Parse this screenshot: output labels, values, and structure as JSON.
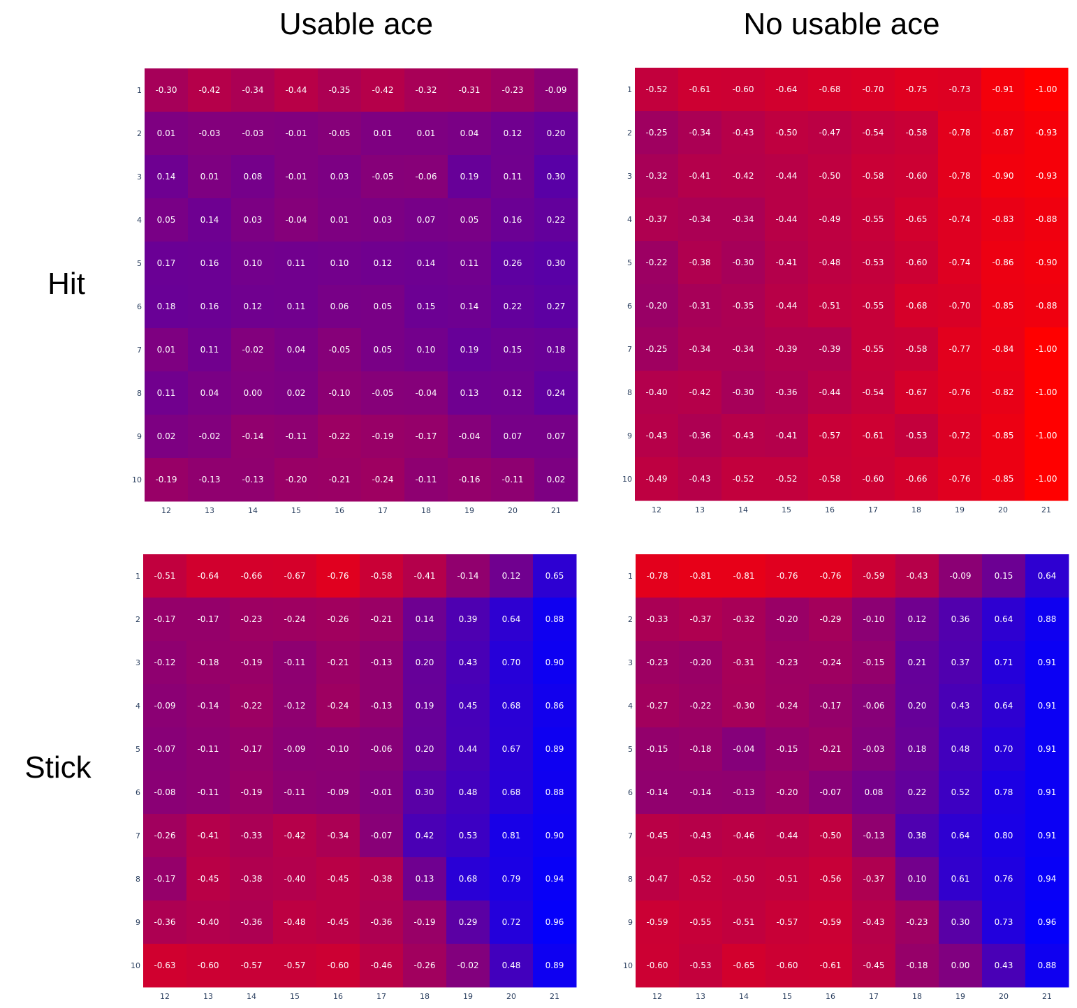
{
  "headers": {
    "columns": [
      "Usable ace",
      "No usable ace"
    ],
    "rows": [
      "Hit",
      "Stick"
    ]
  },
  "colors": {
    "low": "#ff0000",
    "high": "#0000ff",
    "cell_text": "#ffffff",
    "tick_text": "#2a3f5f"
  },
  "chart_data": [
    {
      "type": "heatmap",
      "x": [
        12,
        13,
        14,
        15,
        16,
        17,
        18,
        19,
        20,
        21
      ],
      "y": [
        1,
        2,
        3,
        4,
        5,
        6,
        7,
        8,
        9,
        10
      ],
      "zrange": [
        -1,
        1
      ],
      "colorscale": [
        "#ff0000",
        "#0000ff"
      ],
      "z": [
        [
          -0.3,
          -0.42,
          -0.34,
          -0.44,
          -0.35,
          -0.42,
          -0.32,
          -0.31,
          -0.23,
          -0.09
        ],
        [
          0.01,
          -0.03,
          -0.03,
          -0.01,
          -0.05,
          0.01,
          0.01,
          0.04,
          0.12,
          0.2
        ],
        [
          0.14,
          0.01,
          0.08,
          -0.01,
          0.03,
          -0.05,
          -0.06,
          0.19,
          0.11,
          0.3
        ],
        [
          0.05,
          0.14,
          0.03,
          -0.04,
          0.01,
          0.03,
          0.07,
          0.05,
          0.16,
          0.22
        ],
        [
          0.17,
          0.16,
          0.1,
          0.11,
          0.1,
          0.12,
          0.14,
          0.11,
          0.26,
          0.3
        ],
        [
          0.18,
          0.16,
          0.12,
          0.11,
          0.06,
          0.05,
          0.15,
          0.14,
          0.22,
          0.27
        ],
        [
          0.01,
          0.11,
          -0.02,
          0.04,
          -0.05,
          0.05,
          0.1,
          0.19,
          0.15,
          0.18
        ],
        [
          0.11,
          0.04,
          0.0,
          0.02,
          -0.1,
          -0.05,
          -0.04,
          0.13,
          0.12,
          0.24
        ],
        [
          0.02,
          -0.02,
          -0.14,
          -0.11,
          -0.22,
          -0.19,
          -0.17,
          -0.04,
          0.07,
          0.07
        ],
        [
          -0.19,
          -0.13,
          -0.13,
          -0.2,
          -0.21,
          -0.24,
          -0.11,
          -0.16,
          -0.11,
          0.02
        ]
      ]
    },
    {
      "type": "heatmap",
      "x": [
        12,
        13,
        14,
        15,
        16,
        17,
        18,
        19,
        20,
        21
      ],
      "y": [
        1,
        2,
        3,
        4,
        5,
        6,
        7,
        8,
        9,
        10
      ],
      "zrange": [
        -1,
        1
      ],
      "colorscale": [
        "#ff0000",
        "#0000ff"
      ],
      "z": [
        [
          -0.52,
          -0.61,
          -0.6,
          -0.64,
          -0.68,
          -0.7,
          -0.75,
          -0.73,
          -0.91,
          -1.0
        ],
        [
          -0.25,
          -0.34,
          -0.43,
          -0.5,
          -0.47,
          -0.54,
          -0.58,
          -0.78,
          -0.87,
          -0.93
        ],
        [
          -0.32,
          -0.41,
          -0.42,
          -0.44,
          -0.5,
          -0.58,
          -0.6,
          -0.78,
          -0.9,
          -0.93
        ],
        [
          -0.37,
          -0.34,
          -0.34,
          -0.44,
          -0.49,
          -0.55,
          -0.65,
          -0.74,
          -0.83,
          -0.88
        ],
        [
          -0.22,
          -0.38,
          -0.3,
          -0.41,
          -0.48,
          -0.53,
          -0.6,
          -0.74,
          -0.86,
          -0.9
        ],
        [
          -0.2,
          -0.31,
          -0.35,
          -0.44,
          -0.51,
          -0.55,
          -0.68,
          -0.7,
          -0.85,
          -0.88
        ],
        [
          -0.25,
          -0.34,
          -0.34,
          -0.39,
          -0.39,
          -0.55,
          -0.58,
          -0.77,
          -0.84,
          -1.0
        ],
        [
          -0.4,
          -0.42,
          -0.3,
          -0.36,
          -0.44,
          -0.54,
          -0.67,
          -0.76,
          -0.82,
          -1.0
        ],
        [
          -0.43,
          -0.36,
          -0.43,
          -0.41,
          -0.57,
          -0.61,
          -0.53,
          -0.72,
          -0.85,
          -1.0
        ],
        [
          -0.49,
          -0.43,
          -0.52,
          -0.52,
          -0.58,
          -0.6,
          -0.66,
          -0.76,
          -0.85,
          -1.0
        ]
      ]
    },
    {
      "type": "heatmap",
      "x": [
        12,
        13,
        14,
        15,
        16,
        17,
        18,
        19,
        20,
        21
      ],
      "y": [
        1,
        2,
        3,
        4,
        5,
        6,
        7,
        8,
        9,
        10
      ],
      "zrange": [
        -1,
        1
      ],
      "colorscale": [
        "#ff0000",
        "#0000ff"
      ],
      "z": [
        [
          -0.51,
          -0.64,
          -0.66,
          -0.67,
          -0.76,
          -0.58,
          -0.41,
          -0.14,
          0.12,
          0.65
        ],
        [
          -0.17,
          -0.17,
          -0.23,
          -0.24,
          -0.26,
          -0.21,
          0.14,
          0.39,
          0.64,
          0.88
        ],
        [
          -0.12,
          -0.18,
          -0.19,
          -0.11,
          -0.21,
          -0.13,
          0.2,
          0.43,
          0.7,
          0.9
        ],
        [
          -0.09,
          -0.14,
          -0.22,
          -0.12,
          -0.24,
          -0.13,
          0.19,
          0.45,
          0.68,
          0.86
        ],
        [
          -0.07,
          -0.11,
          -0.17,
          -0.09,
          -0.1,
          -0.06,
          0.2,
          0.44,
          0.67,
          0.89
        ],
        [
          -0.08,
          -0.11,
          -0.19,
          -0.11,
          -0.09,
          -0.01,
          0.3,
          0.48,
          0.68,
          0.88
        ],
        [
          -0.26,
          -0.41,
          -0.33,
          -0.42,
          -0.34,
          -0.07,
          0.42,
          0.53,
          0.81,
          0.9
        ],
        [
          -0.17,
          -0.45,
          -0.38,
          -0.4,
          -0.45,
          -0.38,
          0.13,
          0.68,
          0.79,
          0.94
        ],
        [
          -0.36,
          -0.4,
          -0.36,
          -0.48,
          -0.45,
          -0.36,
          -0.19,
          0.29,
          0.72,
          0.96
        ],
        [
          -0.63,
          -0.6,
          -0.57,
          -0.57,
          -0.6,
          -0.46,
          -0.26,
          -0.02,
          0.48,
          0.89
        ]
      ]
    },
    {
      "type": "heatmap",
      "x": [
        12,
        13,
        14,
        15,
        16,
        17,
        18,
        19,
        20,
        21
      ],
      "y": [
        1,
        2,
        3,
        4,
        5,
        6,
        7,
        8,
        9,
        10
      ],
      "zrange": [
        -1,
        1
      ],
      "colorscale": [
        "#ff0000",
        "#0000ff"
      ],
      "z": [
        [
          -0.78,
          -0.81,
          -0.81,
          -0.76,
          -0.76,
          -0.59,
          -0.43,
          -0.09,
          0.15,
          0.64
        ],
        [
          -0.33,
          -0.37,
          -0.32,
          -0.2,
          -0.29,
          -0.1,
          0.12,
          0.36,
          0.64,
          0.88
        ],
        [
          -0.23,
          -0.2,
          -0.31,
          -0.23,
          -0.24,
          -0.15,
          0.21,
          0.37,
          0.71,
          0.91
        ],
        [
          -0.27,
          -0.22,
          -0.3,
          -0.24,
          -0.17,
          -0.06,
          0.2,
          0.43,
          0.64,
          0.91
        ],
        [
          -0.15,
          -0.18,
          -0.04,
          -0.15,
          -0.21,
          -0.03,
          0.18,
          0.48,
          0.7,
          0.91
        ],
        [
          -0.14,
          -0.14,
          -0.13,
          -0.2,
          -0.07,
          0.08,
          0.22,
          0.52,
          0.78,
          0.91
        ],
        [
          -0.45,
          -0.43,
          -0.46,
          -0.44,
          -0.5,
          -0.13,
          0.38,
          0.64,
          0.8,
          0.91
        ],
        [
          -0.47,
          -0.52,
          -0.5,
          -0.51,
          -0.56,
          -0.37,
          0.1,
          0.61,
          0.76,
          0.94
        ],
        [
          -0.59,
          -0.55,
          -0.51,
          -0.57,
          -0.59,
          -0.43,
          -0.23,
          0.3,
          0.73,
          0.96
        ],
        [
          -0.6,
          -0.53,
          -0.65,
          -0.6,
          -0.61,
          -0.45,
          -0.18,
          0.0,
          0.43,
          0.88
        ]
      ]
    }
  ]
}
